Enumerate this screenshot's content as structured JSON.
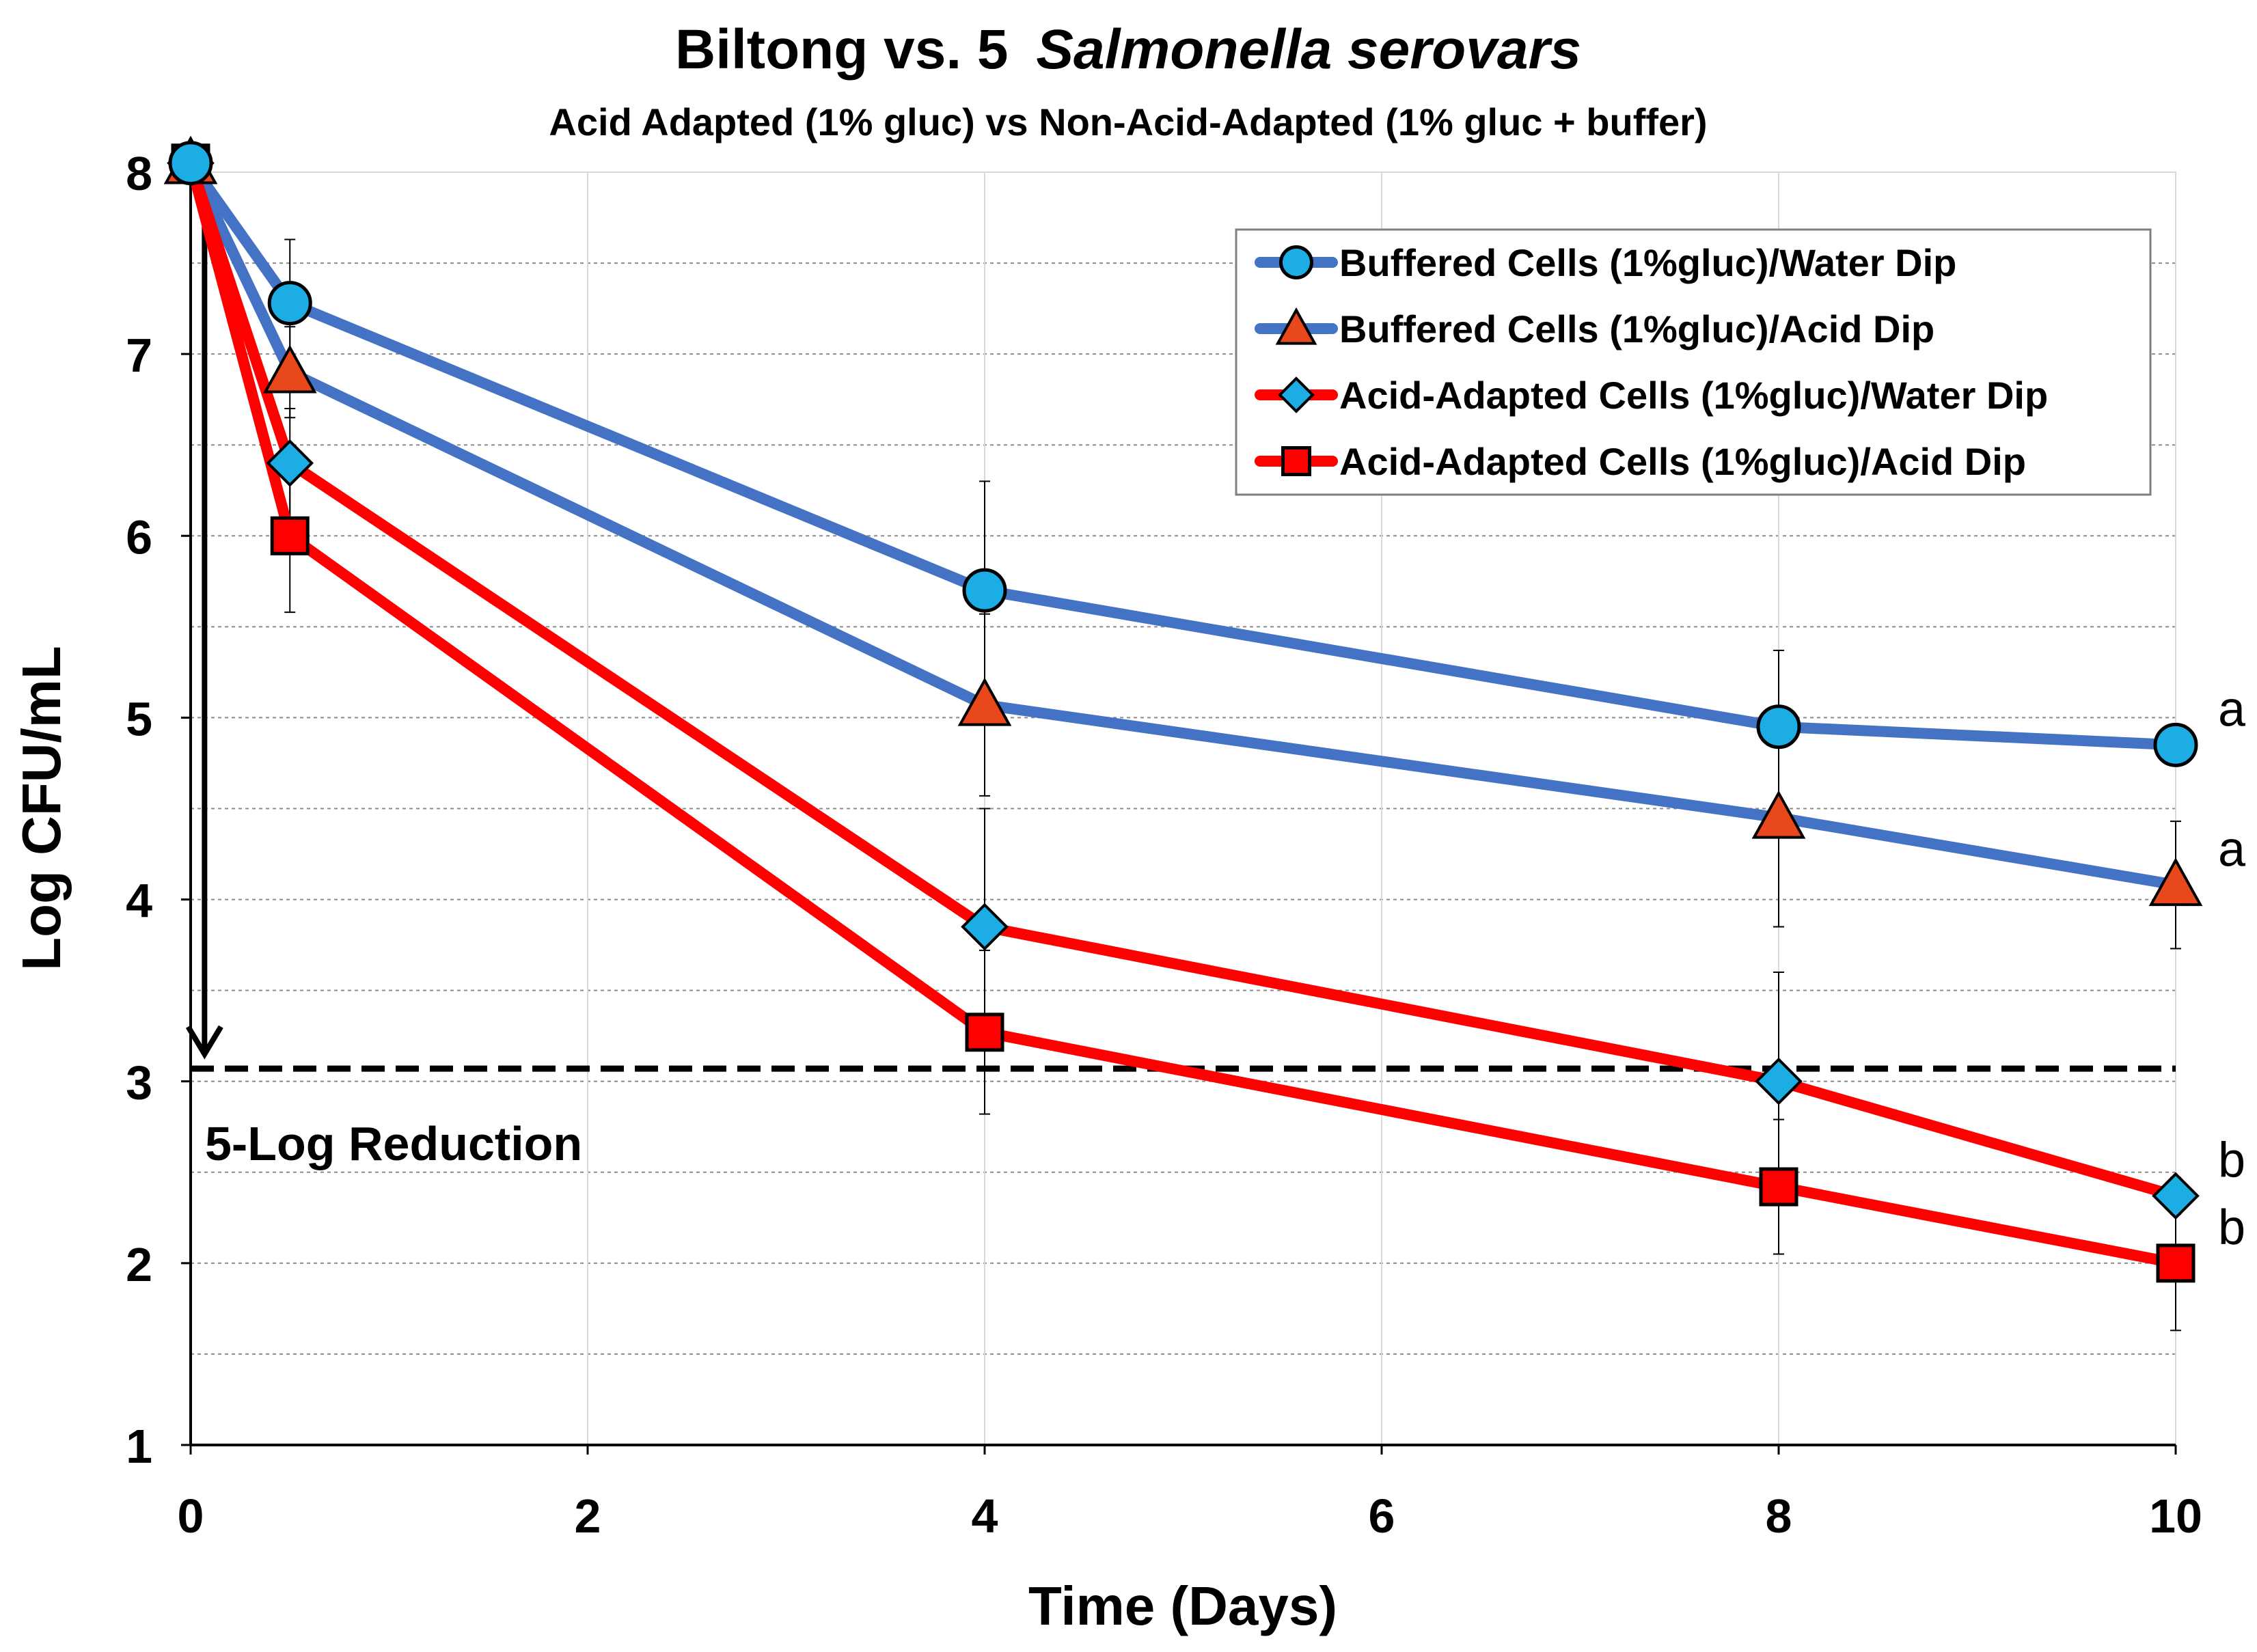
{
  "chart_data": {
    "type": "line",
    "title": "Biltong vs. 5",
    "title_italic": "Salmonella serovars",
    "subtitle": "Acid Adapted (1% gluc) vs Non-Acid-Adapted (1% gluc + buffer)",
    "xlabel": "Time (Days)",
    "ylabel": "Log CFU/mL",
    "xlim": [
      0,
      10
    ],
    "ylim": [
      1,
      8
    ],
    "xticks": [
      0,
      2,
      4,
      6,
      8,
      10
    ],
    "xtick_labels": [
      "0",
      "2",
      "4",
      "6",
      "8",
      "10"
    ],
    "yticks": [
      1,
      2,
      3,
      4,
      5,
      6,
      7,
      8
    ],
    "ytick_labels": [
      "1",
      "2",
      "3",
      "4",
      "5",
      "6",
      "7",
      "8"
    ],
    "grid": true,
    "legend_position": "top-right",
    "x": [
      0,
      0.5,
      4,
      8,
      10
    ],
    "series": [
      {
        "name": "Buffered Cells (1%gluc)/Water Dip",
        "line_color": "#4472C4",
        "marker": "circle",
        "marker_color": "#1CADE4",
        "values": [
          8.05,
          7.28,
          5.7,
          4.95,
          4.85
        ],
        "errors": [
          0.05,
          0.35,
          0.6,
          0.42,
          0.1
        ],
        "significance": "a"
      },
      {
        "name": "Buffered Cells (1%gluc)/Acid Dip",
        "line_color": "#4472C4",
        "marker": "triangle",
        "marker_color": "#E8481C",
        "values": [
          8.05,
          6.9,
          5.07,
          4.45,
          4.08
        ],
        "errors": [
          0.05,
          0.25,
          0.5,
          0.6,
          0.35
        ],
        "significance": "a"
      },
      {
        "name": "Acid-Adapted Cells (1%gluc)/Water Dip",
        "line_color": "#FF0000",
        "marker": "diamond",
        "marker_color": "#1CADE4",
        "values": [
          8.05,
          6.4,
          3.85,
          3.0,
          2.37
        ],
        "errors": [
          0.05,
          0.3,
          0.65,
          0.6,
          0.1
        ],
        "significance": "b"
      },
      {
        "name": "Acid-Adapted Cells (1%gluc)/Acid Dip",
        "line_color": "#FF0000",
        "marker": "square",
        "marker_color": "#FF0000",
        "values": [
          8.05,
          6.0,
          3.27,
          2.42,
          2.0
        ],
        "errors": [
          0.05,
          0.42,
          0.45,
          0.37,
          0.37
        ],
        "significance": "b"
      }
    ],
    "reference_line": {
      "y": 3.07,
      "style": "dashed",
      "label": "5-Log Reduction"
    },
    "arrow": {
      "x": 0.07,
      "from": 8.05,
      "to": 3.15
    }
  }
}
